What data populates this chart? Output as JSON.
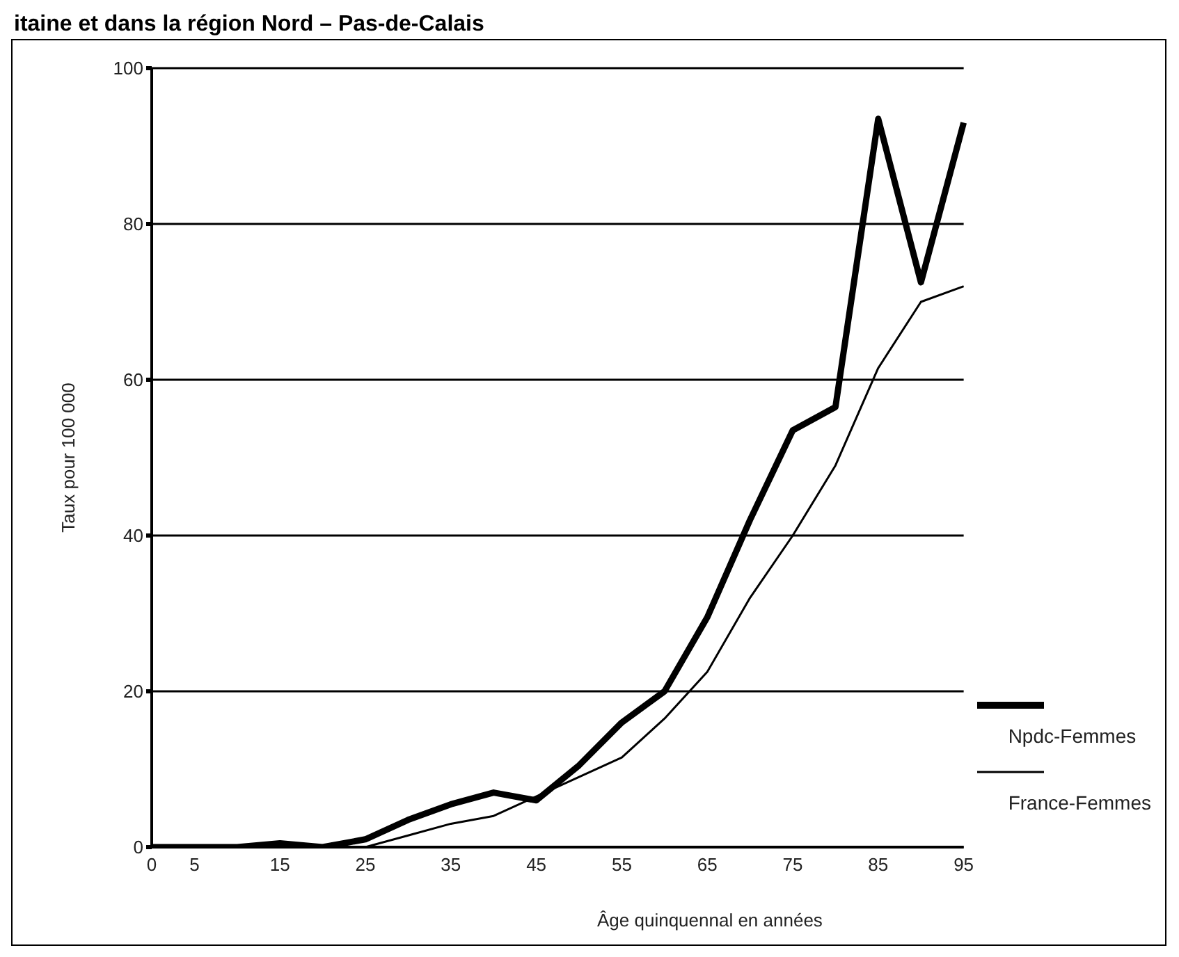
{
  "chart_data": {
    "type": "line",
    "title": "itaine et dans la région Nord – Pas-de-Calais",
    "xlabel": "Âge quinquennal en années",
    "ylabel": "Taux pour 100 000",
    "categories": [
      "0",
      "5",
      null,
      "15",
      null,
      "25",
      null,
      "35",
      null,
      "45",
      null,
      "55",
      null,
      "65",
      null,
      "75",
      null,
      "85",
      null,
      "95"
    ],
    "series": [
      {
        "name": "Npdc-Femmes",
        "color": "#000000",
        "values": [
          0,
          0,
          0,
          0.5,
          0,
          1,
          3.5,
          5.5,
          7,
          6,
          10.5,
          16,
          20,
          29.5,
          42,
          53.5,
          56.5,
          93.5,
          72.5,
          93
        ]
      },
      {
        "name": "France-Femmes",
        "color": "#000000",
        "values": [
          0,
          0,
          0,
          0,
          0,
          0,
          1.5,
          3,
          4,
          6.5,
          9,
          11.5,
          16.5,
          22.5,
          32,
          40,
          49,
          61.5,
          70,
          72
        ]
      }
    ],
    "ylim": [
      0,
      100
    ],
    "yticks": [
      0,
      20,
      40,
      60,
      80,
      100
    ],
    "grid": "y",
    "legend": "right",
    "marker": "none",
    "line_style": "solid"
  }
}
